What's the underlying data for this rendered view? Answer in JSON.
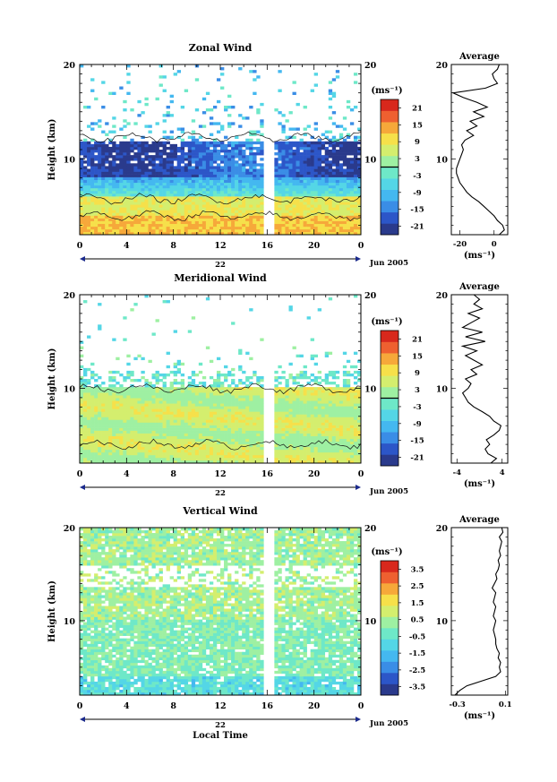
{
  "chart_data": [
    {
      "type": "heatmap",
      "title": "Zonal Wind",
      "ylabel": "Height (km)",
      "xlabel": "",
      "x_ticks": [
        "0",
        "4",
        "8",
        "12",
        "16",
        "20",
        "0"
      ],
      "y_ticks": [
        "20",
        "10"
      ],
      "xlim": [
        0,
        24
      ],
      "ylim": [
        2,
        20
      ],
      "day_label": "22",
      "date_label": "Jun 2005",
      "colorbar": {
        "unit": "(ms⁻¹)",
        "ticks": [
          "21",
          "15",
          "9",
          "3",
          "-3",
          "-9",
          "-15",
          "-21"
        ],
        "range": [
          -24,
          24
        ],
        "marker": 0
      },
      "profile": {
        "title": "Average",
        "unit": "(ms⁻¹)",
        "x_ticks": [
          "-20",
          "0"
        ],
        "xlim": [
          -25,
          8
        ],
        "heights": [
          2,
          2.5,
          3,
          3.5,
          4,
          4.5,
          5,
          5.5,
          6,
          6.5,
          7,
          7.5,
          8,
          8.5,
          9,
          9.5,
          10,
          10.5,
          11,
          11.5,
          12,
          12.5,
          13,
          13.5,
          14,
          14.5,
          15,
          15.5,
          16,
          16.5,
          17,
          17.5,
          18,
          18.5,
          19,
          19.5,
          20
        ],
        "values": [
          3,
          6,
          5,
          2,
          0,
          -3,
          -6,
          -9,
          -13,
          -16,
          -18,
          -20,
          -21,
          -22,
          -22,
          -21,
          -20,
          -19,
          -18,
          -19,
          -17,
          -12,
          -16,
          -10,
          -14,
          -6,
          -12,
          -4,
          -10,
          -18,
          -24,
          -5,
          2,
          0,
          -1,
          2,
          3
        ]
      }
    },
    {
      "type": "heatmap",
      "title": "Meridional Wind",
      "ylabel": "Height (km)",
      "xlabel": "",
      "x_ticks": [
        "0",
        "4",
        "8",
        "12",
        "16",
        "20",
        "0"
      ],
      "y_ticks": [
        "20",
        "10"
      ],
      "xlim": [
        0,
        24
      ],
      "ylim": [
        2,
        20
      ],
      "day_label": "22",
      "date_label": "Jun 2005",
      "colorbar": {
        "unit": "(ms⁻¹)",
        "ticks": [
          "21",
          "15",
          "9",
          "3",
          "-3",
          "-9",
          "-15",
          "-21"
        ],
        "range": [
          -24,
          24
        ],
        "marker": 0
      },
      "profile": {
        "title": "Average",
        "unit": "(ms⁻¹)",
        "x_ticks": [
          "-4",
          "4"
        ],
        "xlim": [
          -5,
          5
        ],
        "heights": [
          2,
          2.5,
          3,
          3.5,
          4,
          4.5,
          5,
          5.5,
          6,
          6.5,
          7,
          7.5,
          8,
          8.5,
          9,
          9.5,
          10,
          10.5,
          11,
          11.5,
          12,
          12.5,
          13,
          13.5,
          14,
          14.5,
          15,
          15.5,
          16,
          16.5,
          17,
          17.5,
          18,
          18.5,
          19,
          19.5,
          20
        ],
        "values": [
          2,
          3,
          1.5,
          1,
          1.8,
          1.2,
          2.5,
          3.5,
          3.8,
          2.5,
          1.8,
          0.5,
          -1,
          -2,
          -2.5,
          -3,
          -2,
          -1.5,
          -2.5,
          -0.5,
          -1.5,
          0.5,
          -1,
          -2.5,
          -0.5,
          -3,
          1,
          -2.5,
          0.5,
          -3,
          -1.5,
          0,
          -2,
          0.5,
          -1,
          0,
          -1
        ]
      }
    },
    {
      "type": "heatmap",
      "title": "Vertical Wind",
      "ylabel": "Height (km)",
      "xlabel": "Local Time",
      "x_ticks": [
        "0",
        "4",
        "8",
        "12",
        "16",
        "20",
        "0"
      ],
      "y_ticks": [
        "20",
        "10"
      ],
      "xlim": [
        0,
        24
      ],
      "ylim": [
        2,
        20
      ],
      "day_label": "22",
      "date_label": "Jun 2005",
      "colorbar": {
        "unit": "(ms⁻¹)",
        "ticks": [
          "3.5",
          "2.5",
          "1.5",
          "0.5",
          "-0.5",
          "-1.5",
          "-2.5",
          "-3.5"
        ],
        "range": [
          -4,
          4
        ]
      },
      "profile": {
        "title": "Average",
        "unit": "(ms⁻¹)",
        "x_ticks": [
          "-0.3",
          "0.1"
        ],
        "xlim": [
          -0.35,
          0.12
        ],
        "heights": [
          2,
          2.5,
          3,
          3.5,
          4,
          4.5,
          5,
          5.5,
          6,
          6.5,
          7,
          7.5,
          8,
          8.5,
          9,
          9.5,
          10,
          10.5,
          11,
          11.5,
          12,
          12.5,
          13,
          13.5,
          14,
          14.5,
          15,
          15.5,
          16,
          16.5,
          17,
          17.5,
          18,
          18.5,
          19,
          19.5,
          20
        ],
        "values": [
          -0.32,
          -0.28,
          -0.22,
          -0.1,
          0.02,
          0.06,
          0.05,
          0.06,
          0.04,
          0.05,
          0.03,
          0.02,
          0.02,
          0.01,
          0.0,
          0.01,
          0.02,
          0.0,
          0.01,
          0.02,
          0.0,
          0.01,
          0.02,
          -0.01,
          0.01,
          0.03,
          0.02,
          0.04,
          0.05,
          0.04,
          0.06,
          0.05,
          0.06,
          0.07,
          0.05,
          0.08,
          0.07
        ]
      }
    }
  ]
}
